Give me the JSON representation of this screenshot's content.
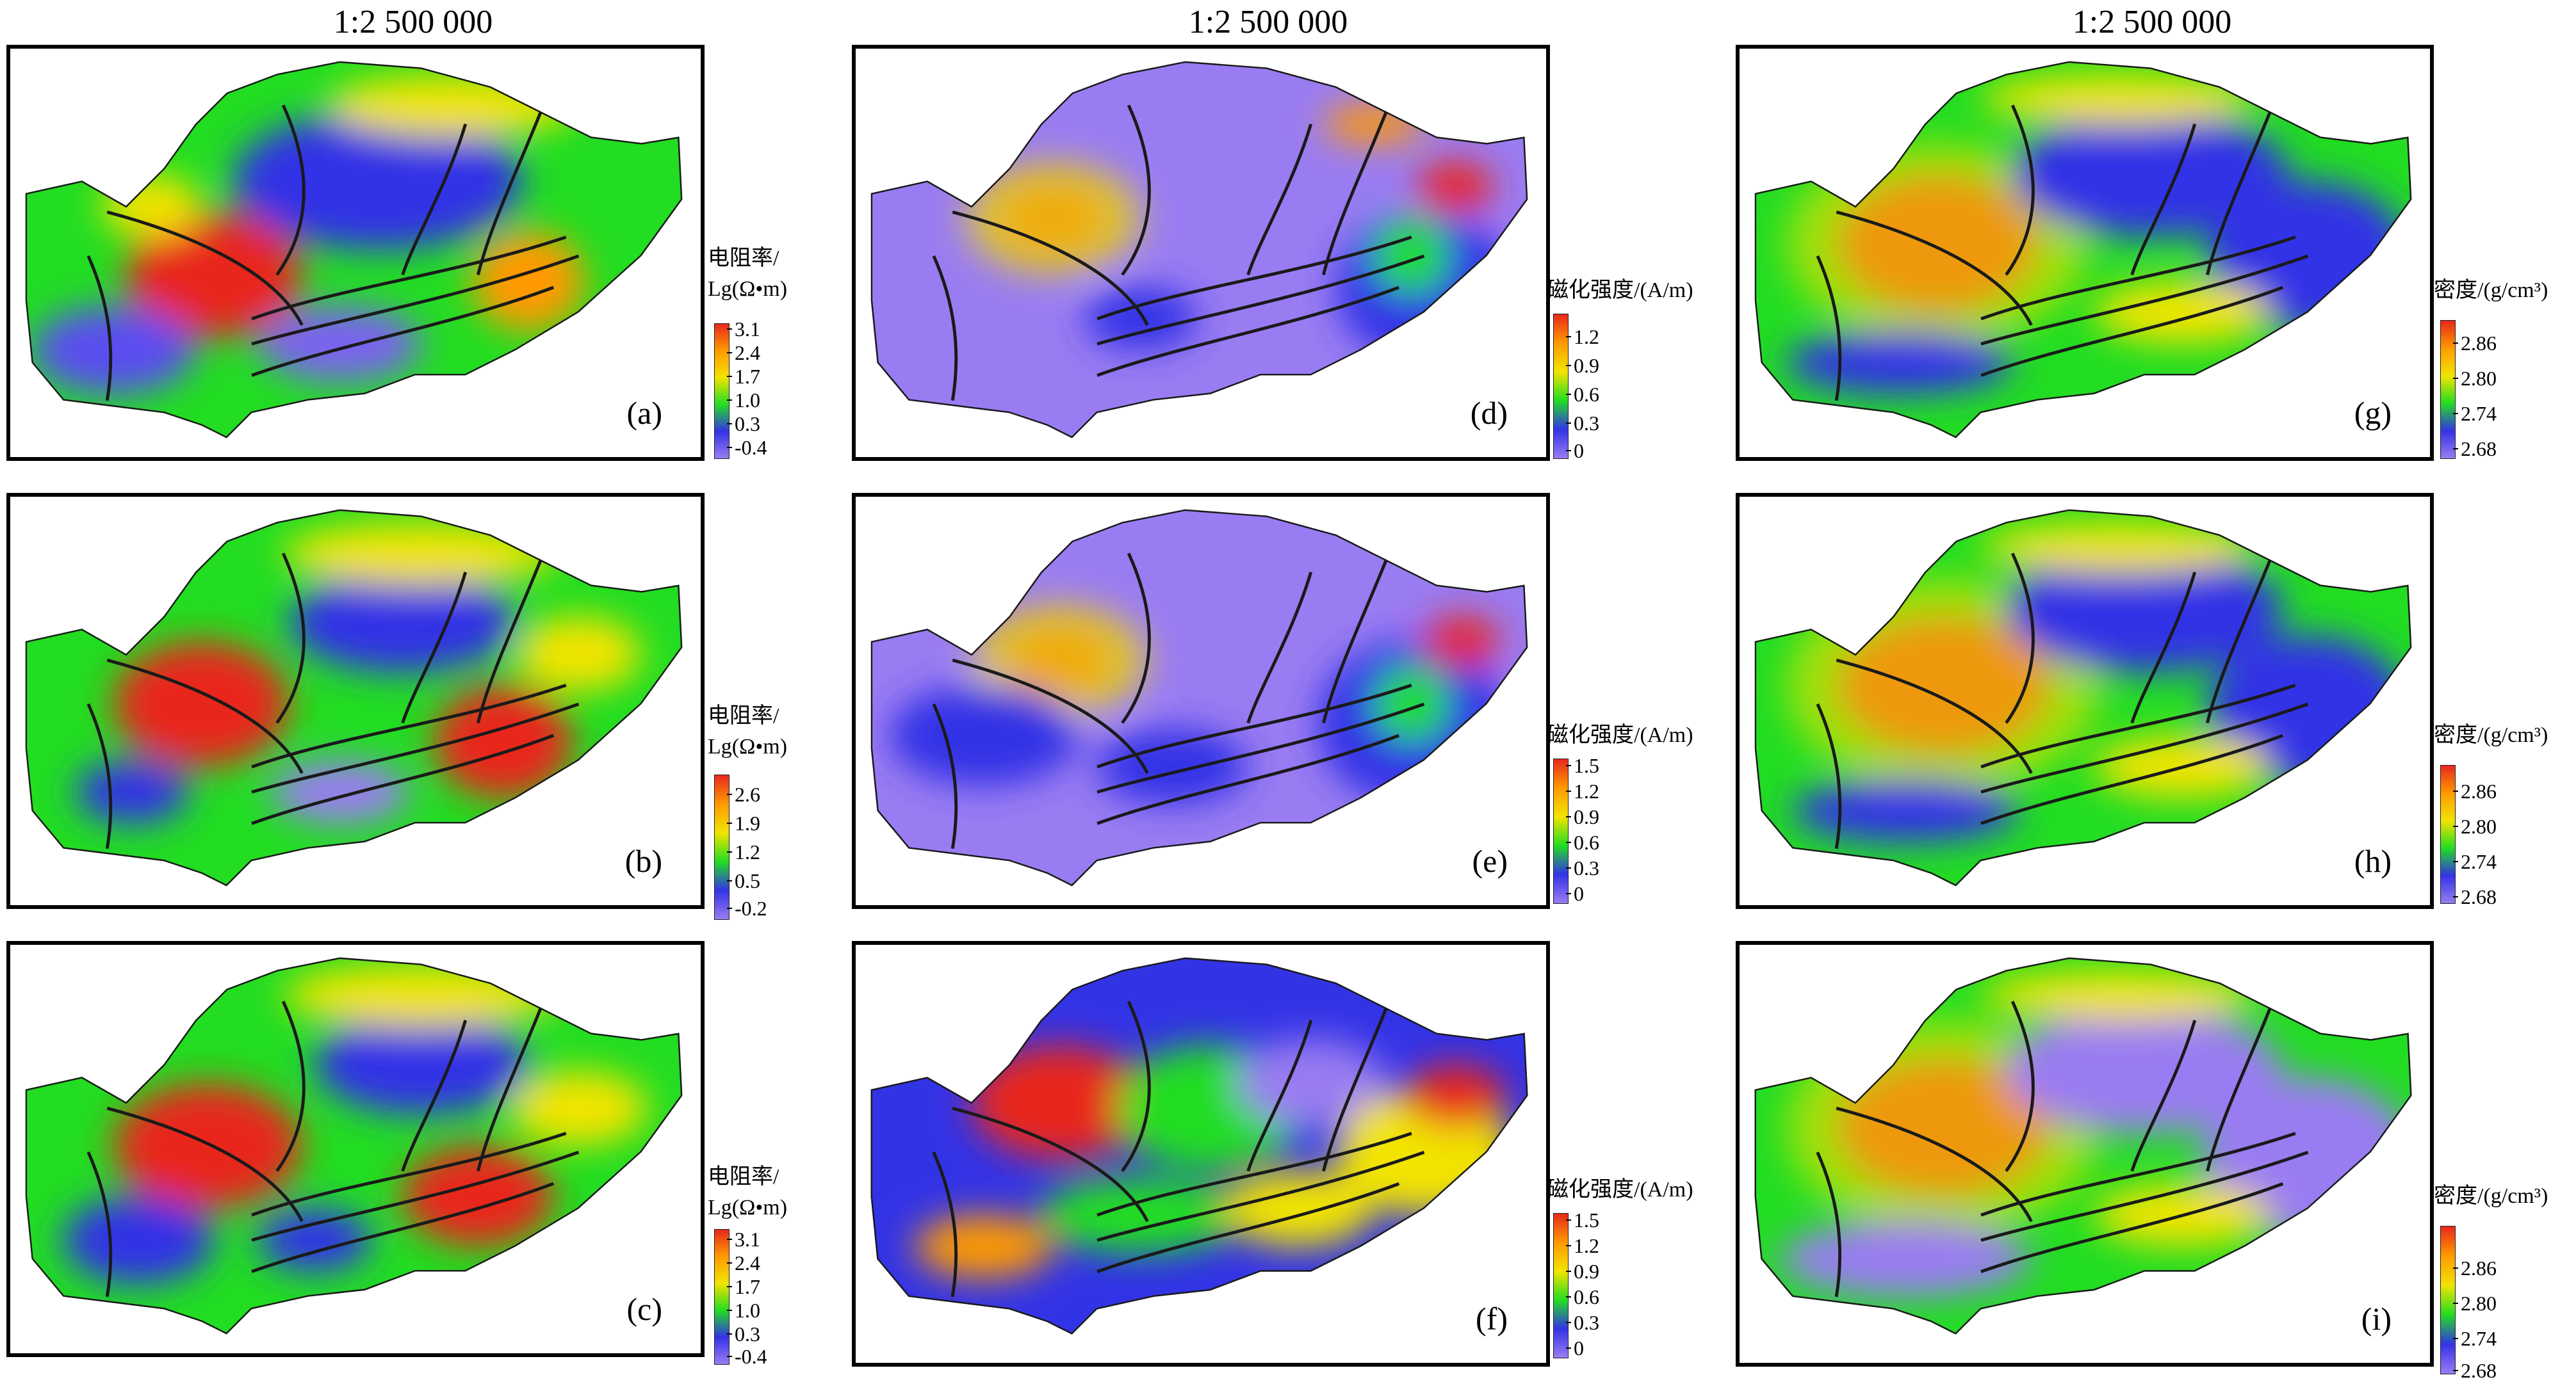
{
  "scale_titles": [
    "1:2 500 000",
    "1:2 500 000",
    "1:2 500 000"
  ],
  "colors": {
    "low_purple": "#9a7cf2",
    "blue": "#3333e6",
    "green": "#22dd22",
    "yellow": "#f2e400",
    "orange": "#ff9a00",
    "red": "#e8281c",
    "boundary": "#1a1a1a"
  },
  "panels": [
    {
      "id": "a",
      "label": "(a)",
      "legend_title": [
        "电阻率/",
        "Lg(Ω•m)"
      ],
      "ticks": [
        "3.1",
        "2.4",
        "1.7",
        "1.0",
        "0.3",
        "-0.4"
      ]
    },
    {
      "id": "b",
      "label": "(b)",
      "legend_title": [
        "电阻率/",
        "Lg(Ω•m)"
      ],
      "ticks": [
        "2.6",
        "1.9",
        "1.2",
        "0.5",
        "-0.2"
      ]
    },
    {
      "id": "c",
      "label": "(c)",
      "legend_title": [
        "电阻率/",
        "Lg(Ω•m)"
      ],
      "ticks": [
        "3.1",
        "2.4",
        "1.7",
        "1.0",
        "0.3",
        "-0.4"
      ]
    },
    {
      "id": "d",
      "label": "(d)",
      "legend_title": [
        "磁化强度/(A/m)"
      ],
      "ticks": [
        "1.2",
        "0.9",
        "0.6",
        "0.3",
        "0"
      ]
    },
    {
      "id": "e",
      "label": "(e)",
      "legend_title": [
        "磁化强度/(A/m)"
      ],
      "ticks": [
        "1.5",
        "1.2",
        "0.9",
        "0.6",
        "0.3",
        "0"
      ]
    },
    {
      "id": "f",
      "label": "(f)",
      "legend_title": [
        "磁化强度/(A/m)"
      ],
      "ticks": [
        "1.5",
        "1.2",
        "0.9",
        "0.6",
        "0.3",
        "0"
      ]
    },
    {
      "id": "g",
      "label": "(g)",
      "legend_title": [
        "密度/(g/cm³)"
      ],
      "ticks": [
        "2.86",
        "2.80",
        "2.74",
        "2.68"
      ]
    },
    {
      "id": "h",
      "label": "(h)",
      "legend_title": [
        "密度/(g/cm³)"
      ],
      "ticks": [
        "2.86",
        "2.80",
        "2.74",
        "2.68"
      ]
    },
    {
      "id": "i",
      "label": "(i)",
      "legend_title": [
        "密度/(g/cm³)"
      ],
      "ticks": [
        "2.86",
        "2.80",
        "2.74",
        "2.68"
      ]
    }
  ]
}
